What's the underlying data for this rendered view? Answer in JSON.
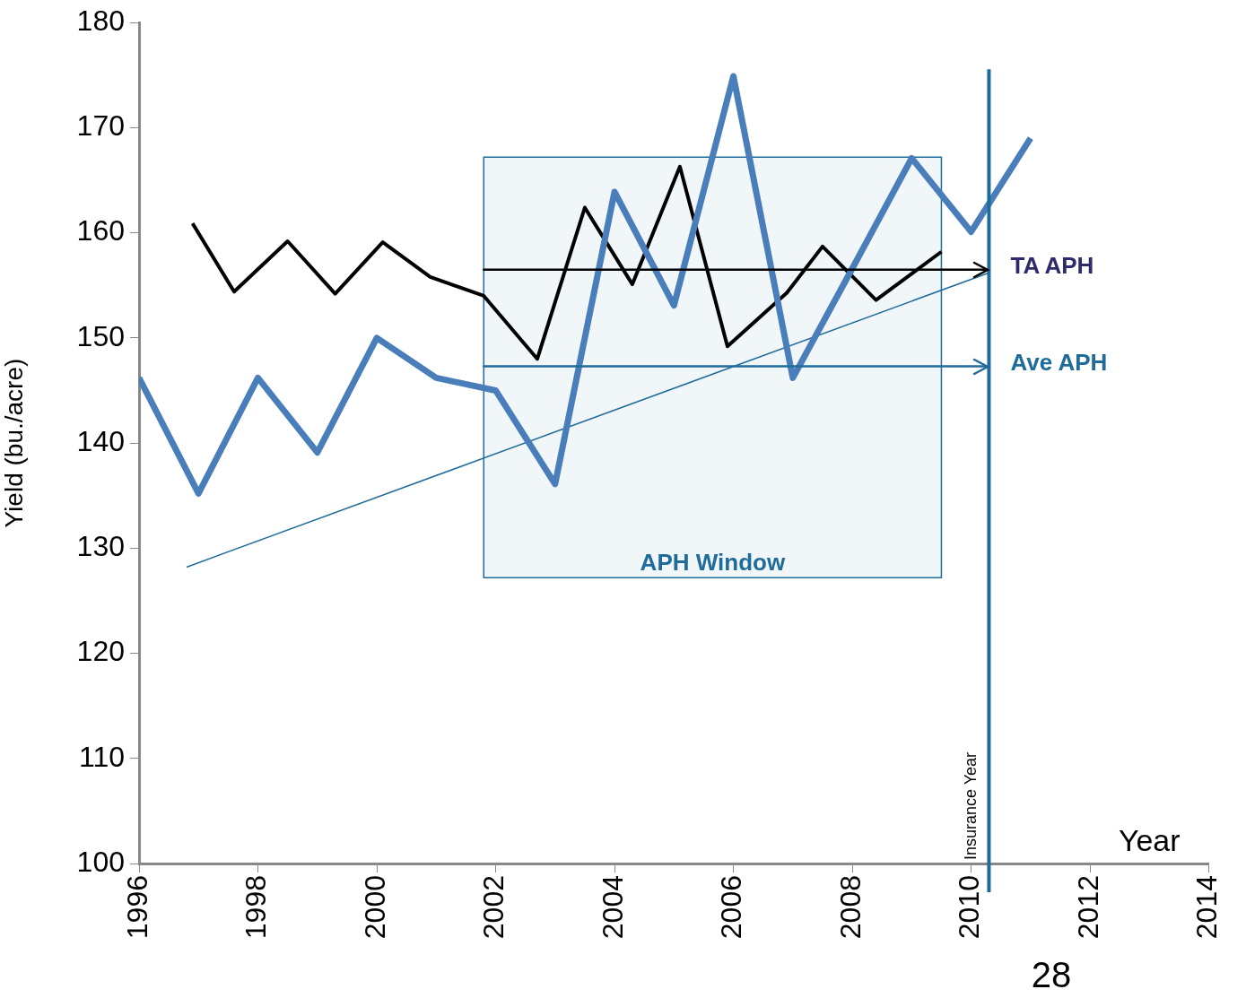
{
  "chart_data": {
    "type": "line",
    "xlabel": "Year",
    "ylabel": "Yield (bu./acre)",
    "xlim": [
      1996,
      2014
    ],
    "xticks": [
      1996,
      1998,
      2000,
      2002,
      2004,
      2006,
      2008,
      2010,
      2012,
      2014
    ],
    "ylim": [
      100,
      180
    ],
    "yticks": [
      100,
      110,
      120,
      130,
      140,
      150,
      160,
      170,
      180
    ],
    "grid": false,
    "legend": false,
    "marker": "none",
    "line_style": "solid",
    "series": [
      {
        "color": "#4a7ebb",
        "x": [
          1996,
          1997,
          1998,
          1999,
          2000,
          2001,
          2002,
          2003,
          2004,
          2005,
          2006,
          2007,
          2008,
          2009,
          2010,
          2011
        ],
        "values": [
          146.2,
          135.2,
          146.2,
          139.1,
          150,
          146.2,
          145,
          136.1,
          163.9,
          153.1,
          174.9,
          146.2,
          156.6,
          167.1,
          160.1,
          169
        ]
      },
      {
        "color": "#000000",
        "x": [
          1996.9,
          1997.6,
          1998.5,
          1999.3,
          2000.1,
          2000.9,
          2001.8,
          2002.7,
          2003.5,
          2004.3,
          2005.1,
          2005.9,
          2006.9,
          2007.5,
          2008.4,
          2009.5
        ],
        "values": [
          160.9,
          154.4,
          159.2,
          154.2,
          159.1,
          155.8,
          154,
          148,
          162.4,
          155.1,
          166.3,
          149.2,
          154.3,
          158.7,
          153.6,
          158.2
        ]
      },
      {
        "color": "#1f6b9a",
        "x": [
          1996.8,
          2010.3
        ],
        "values": [
          128.2,
          156.2
        ]
      }
    ],
    "ref_lines": [
      {
        "axis": "x",
        "value": 2010.3,
        "label": "Insurance Year",
        "color": "#1f6b9a"
      },
      {
        "axis": "y",
        "value": 156.5,
        "label": "TA APH",
        "color": "#000000"
      },
      {
        "axis": "y",
        "value": 147.3,
        "label": "Ave APH",
        "color": "#1f6b9a"
      }
    ],
    "bands": [
      {
        "axis": "x",
        "from": 2001.8,
        "to": 2009.5,
        "label": "APH Window",
        "color": "#1f6b9a"
      }
    ],
    "annotations": [
      "28"
    ]
  }
}
